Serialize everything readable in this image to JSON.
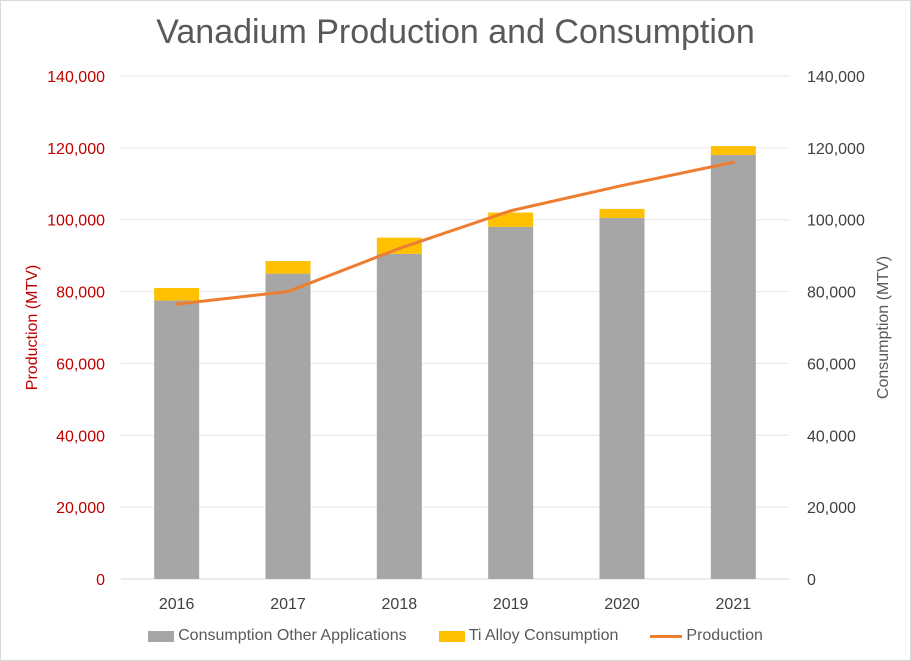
{
  "chart_data": {
    "type": "bar",
    "title": "Vanadium Production and Consumption",
    "categories": [
      "2016",
      "2017",
      "2018",
      "2019",
      "2020",
      "2021"
    ],
    "series": [
      {
        "name": "Consumption Other Applications",
        "kind": "stacked-bar",
        "axis": "right",
        "color": "#a6a6a6",
        "values": [
          77500,
          85000,
          90500,
          98000,
          100500,
          118000
        ]
      },
      {
        "name": "Ti Alloy Consumption",
        "kind": "stacked-bar",
        "axis": "right",
        "color": "#ffc000",
        "values": [
          3500,
          3500,
          4500,
          4000,
          2500,
          2500
        ]
      },
      {
        "name": "Production",
        "kind": "line",
        "axis": "left",
        "color": "#ed7d31",
        "values": [
          76500,
          80000,
          92000,
          102500,
          109500,
          116000
        ]
      }
    ],
    "ylabel": "Production (MTV)",
    "y2label": "Consumption  (MTV)",
    "ylim": [
      0,
      140000
    ],
    "y2lim": [
      0,
      140000
    ],
    "yticks": [
      "0",
      "20,000",
      "40,000",
      "60,000",
      "80,000",
      "100,000",
      "120,000",
      "140,000"
    ],
    "y2ticks": [
      "0",
      "20,000",
      "40,000",
      "60,000",
      "80,000",
      "100,000",
      "120,000",
      "140,000"
    ],
    "ytick_color": "#c00000",
    "grid": true,
    "legend_position": "bottom"
  }
}
